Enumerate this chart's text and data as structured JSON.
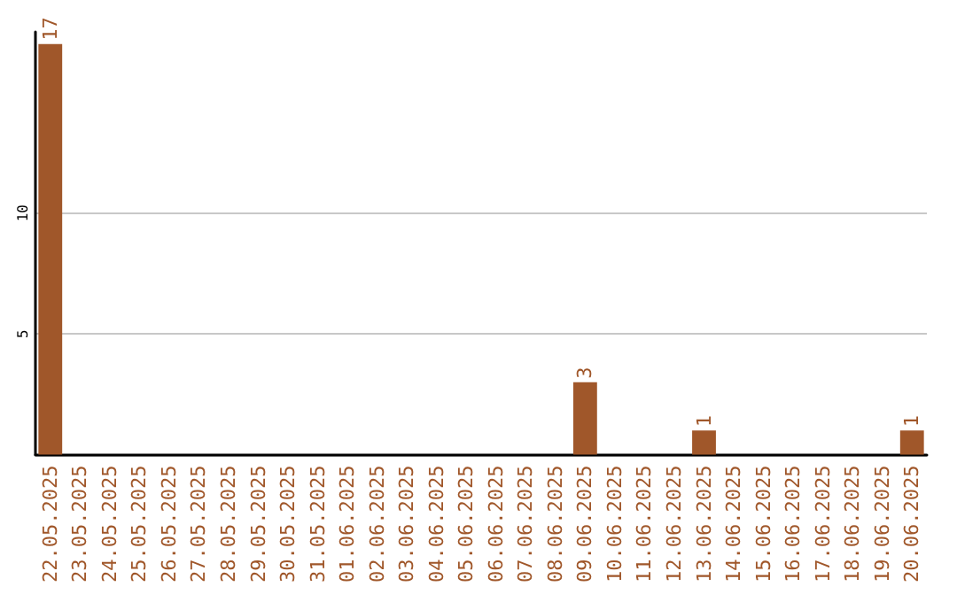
{
  "chart_data": {
    "type": "bar",
    "categories": [
      "22.05.2025",
      "23.05.2025",
      "24.05.2025",
      "25.05.2025",
      "26.05.2025",
      "27.05.2025",
      "28.05.2025",
      "29.05.2025",
      "30.05.2025",
      "31.05.2025",
      "01.06.2025",
      "02.06.2025",
      "03.06.2025",
      "04.06.2025",
      "05.06.2025",
      "06.06.2025",
      "07.06.2025",
      "08.06.2025",
      "09.06.2025",
      "10.06.2025",
      "11.06.2025",
      "12.06.2025",
      "13.06.2025",
      "14.06.2025",
      "15.06.2025",
      "16.06.2025",
      "17.06.2025",
      "18.06.2025",
      "19.06.2025",
      "20.06.2025"
    ],
    "series": [
      {
        "color": "#a0572a",
        "values": [
          17,
          0,
          0,
          0,
          0,
          0,
          0,
          0,
          0,
          0,
          0,
          0,
          0,
          0,
          0,
          0,
          0,
          0,
          3,
          0,
          0,
          0,
          1,
          0,
          0,
          0,
          0,
          0,
          0,
          1
        ],
        "value_labels": [
          "17",
          null,
          null,
          null,
          null,
          null,
          null,
          null,
          null,
          null,
          null,
          null,
          null,
          null,
          null,
          null,
          null,
          null,
          "3",
          null,
          null,
          null,
          "1",
          null,
          null,
          null,
          null,
          null,
          null,
          "1"
        ]
      }
    ],
    "ylim": [
      0,
      17.5
    ],
    "yticks": [
      {
        "value": 0,
        "label": null
      },
      5,
      10
    ],
    "grid": "y"
  }
}
